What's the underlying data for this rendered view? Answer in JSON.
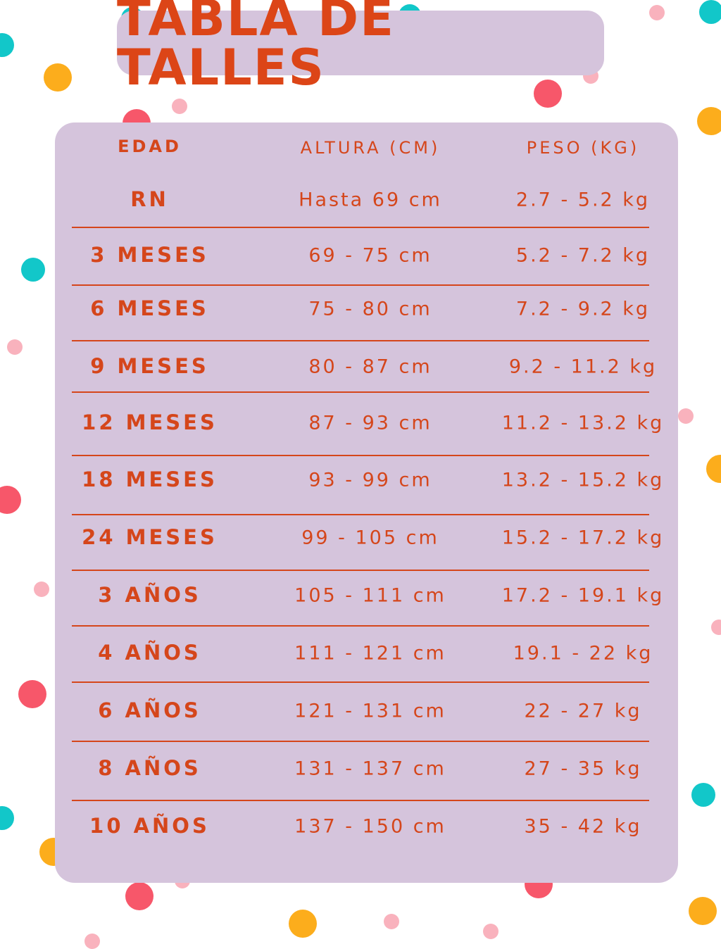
{
  "title": "TABLA DE TALLES",
  "colors": {
    "accent": "#dc4517",
    "panel": "#d5c4dc",
    "dot_teal": "#12c7c9",
    "dot_orange": "#fcad1c",
    "dot_red": "#f7576a",
    "dot_pink": "#f9b2bd"
  },
  "table": {
    "headers": {
      "age": "EDAD",
      "height": "ALTURA (CM)",
      "weight": "PESO (KG)"
    },
    "rows": [
      {
        "age": "RN",
        "height": "Hasta 69 cm",
        "weight": "2.7 - 5.2 kg"
      },
      {
        "age": "3 MESES",
        "height": "69 - 75 cm",
        "weight": "5.2 - 7.2 kg"
      },
      {
        "age": "6 MESES",
        "height": "75 - 80 cm",
        "weight": "7.2 - 9.2 kg"
      },
      {
        "age": "9 MESES",
        "height": "80 - 87 cm",
        "weight": "9.2 - 11.2 kg"
      },
      {
        "age": "12 MESES",
        "height": "87 - 93 cm",
        "weight": "11.2 - 13.2 kg"
      },
      {
        "age": "18 MESES",
        "height": "93 - 99 cm",
        "weight": "13.2 - 15.2 kg"
      },
      {
        "age": "24 MESES",
        "height": "99 - 105 cm",
        "weight": "15.2 - 17.2 kg"
      },
      {
        "age": "3 AÑOS",
        "height": "105 - 111 cm",
        "weight": "17.2 - 19.1 kg"
      },
      {
        "age": "4 AÑOS",
        "height": "111 - 121 cm",
        "weight": "19.1 - 22 kg"
      },
      {
        "age": "6 AÑOS",
        "height": "121 - 131 cm",
        "weight": "22 - 27 kg"
      },
      {
        "age": "8 AÑOS",
        "height": "131 - 137 cm",
        "weight": "27 - 35 kg"
      },
      {
        "age": "10 AÑOS",
        "height": "137 - 150 cm",
        "weight": "35 - 42 kg"
      }
    ]
  }
}
